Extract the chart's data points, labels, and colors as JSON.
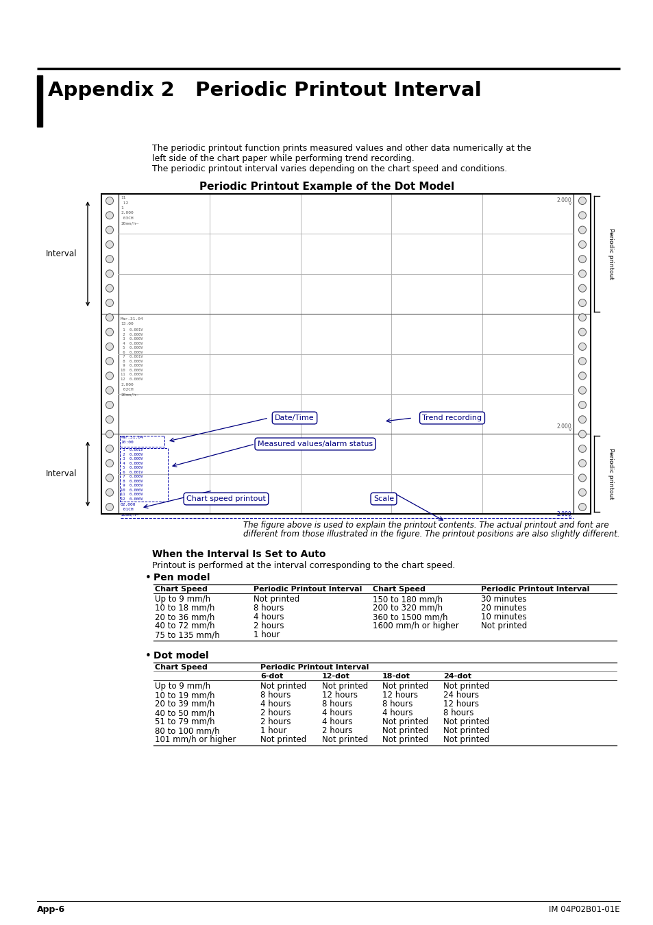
{
  "title": "Appendix 2   Periodic Printout Interval",
  "section_subtitle": "Periodic Printout Example of the Dot Model",
  "intro_text": [
    "The periodic printout function prints measured values and other data numerically at the",
    "left side of the chart paper while performing trend recording.",
    "The periodic printout interval varies depending on the chart speed and conditions."
  ],
  "figure_caption_1": "The figure above is used to explain the printout contents. The actual printout and font are",
  "figure_caption_2": "different from those illustrated in the figure. The printout positions are also slightly different.",
  "auto_section_title": "When the Interval Is Set to Auto",
  "auto_section_text": "Printout is performed at the interval corresponding to the chart speed.",
  "pen_model_title": "Pen model",
  "pen_table_headers": [
    "Chart Speed",
    "Periodic Printout Interval",
    "Chart Speed",
    "Periodic Printout Interval"
  ],
  "pen_table_rows": [
    [
      "Up to 9 mm/h",
      "Not printed",
      "150 to 180 mm/h",
      "30 minutes"
    ],
    [
      "10 to 18 mm/h",
      "8 hours",
      "200 to 320 mm/h",
      "20 minutes"
    ],
    [
      "20 to 36 mm/h",
      "4 hours",
      "360 to 1500 mm/h",
      "10 minutes"
    ],
    [
      "40 to 72 mm/h",
      "2 hours",
      "1600 mm/h or higher",
      "Not printed"
    ],
    [
      "75 to 135 mm/h",
      "1 hour",
      "",
      ""
    ]
  ],
  "dot_model_title": "Dot model",
  "dot_table_header1": "Chart Speed",
  "dot_table_header2": "Periodic Printout Interval",
  "dot_table_subheaders": [
    "6-dot",
    "12-dot",
    "18-dot",
    "24-dot"
  ],
  "dot_table_rows": [
    [
      "Up to 9 mm/h",
      "Not printed",
      "Not printed",
      "Not printed",
      "Not printed"
    ],
    [
      "10 to 19 mm/h",
      "8 hours",
      "12 hours",
      "12 hours",
      "24 hours"
    ],
    [
      "20 to 39 mm/h",
      "4 hours",
      "8 hours",
      "8 hours",
      "12 hours"
    ],
    [
      "40 to 50 mm/h",
      "2 hours",
      "4 hours",
      "4 hours",
      "8 hours"
    ],
    [
      "51 to 79 mm/h",
      "2 hours",
      "4 hours",
      "Not printed",
      "Not printed"
    ],
    [
      "80 to 100 mm/h",
      "1 hour",
      "2 hours",
      "Not printed",
      "Not printed"
    ],
    [
      "101 mm/h or higher",
      "Not printed",
      "Not printed",
      "Not printed",
      "Not printed"
    ]
  ],
  "footer_left": "App-6",
  "footer_right": "IM 04P02B01-01E",
  "bg_color": "#ffffff",
  "text_color": "#000000",
  "grid_color": "#aaaaaa",
  "blue_color": "#0000aa",
  "annotation_color": "#000080",
  "gray_color": "#555555"
}
